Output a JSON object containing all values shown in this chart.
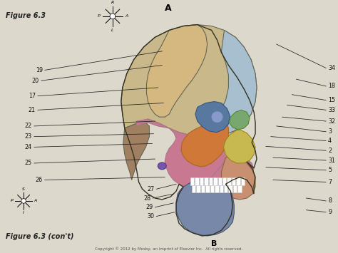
{
  "bg_color": "#ddd8cc",
  "title_text": "Figure 6.3",
  "subtitle_text": "Figure 6.3 (con't)",
  "copyright": "Copyright © 2012 by Mosby, an imprint of Elsevier Inc.  All rights reserved.",
  "skull_regions": {
    "parietal": {
      "color": "#c8b88a"
    },
    "parietal_brown": {
      "color": "#a08060"
    },
    "occipital": {
      "color": "#a8bfd0"
    },
    "temporal": {
      "color": "#c87890"
    },
    "frontal": {
      "color": "#d4b880"
    },
    "sphenoid_orange": {
      "color": "#d07838"
    },
    "zygomatic": {
      "color": "#c8b850"
    },
    "maxilla": {
      "color": "#c89070"
    },
    "mandible": {
      "color": "#7888a8"
    },
    "nasal": {
      "color": "#88a870"
    },
    "orbit_blue": {
      "color": "#5878a0"
    },
    "lacrimal_green": {
      "color": "#78a870"
    }
  },
  "left_labels": [
    [
      "19",
      62,
      95,
      228,
      68
    ],
    [
      "20",
      57,
      110,
      228,
      88
    ],
    [
      "17",
      52,
      132,
      222,
      120
    ],
    [
      "21",
      52,
      152,
      230,
      142
    ],
    [
      "22",
      47,
      175,
      218,
      168
    ],
    [
      "23",
      47,
      190,
      216,
      186
    ],
    [
      "24",
      47,
      205,
      214,
      200
    ],
    [
      "25",
      47,
      228,
      218,
      222
    ],
    [
      "26",
      62,
      252,
      232,
      248
    ]
  ],
  "right_labels": [
    [
      "34",
      460,
      92,
      390,
      58
    ],
    [
      "18",
      460,
      118,
      418,
      108
    ],
    [
      "15",
      460,
      138,
      412,
      130
    ],
    [
      "33",
      460,
      152,
      405,
      145
    ],
    [
      "32",
      460,
      168,
      398,
      162
    ],
    [
      "3",
      460,
      183,
      390,
      175
    ],
    [
      "4",
      460,
      196,
      382,
      190
    ],
    [
      "2",
      460,
      210,
      375,
      204
    ],
    [
      "31",
      460,
      224,
      385,
      220
    ],
    [
      "5",
      460,
      238,
      375,
      234
    ],
    [
      "7",
      460,
      255,
      385,
      252
    ],
    [
      "8",
      460,
      282,
      432,
      278
    ],
    [
      "9",
      460,
      298,
      432,
      295
    ]
  ],
  "bottom_labels": [
    [
      "27",
      220,
      265,
      248,
      258
    ],
    [
      "28",
      215,
      278,
      244,
      272
    ],
    [
      "29",
      218,
      291,
      244,
      285
    ],
    [
      "30",
      220,
      304,
      246,
      298
    ]
  ]
}
